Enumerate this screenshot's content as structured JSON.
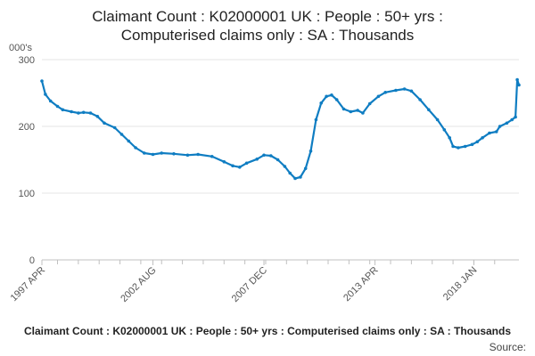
{
  "chart_data": {
    "type": "line",
    "title_lines": [
      "Claimant Count : K02000001 UK : People : 50+ yrs :",
      "Computerised claims only : SA : Thousands"
    ],
    "ylabel": "000's",
    "ylim": [
      0,
      300
    ],
    "yticks": [
      0,
      100,
      200,
      300
    ],
    "xtick_labels": [
      "1997 APR",
      "2002 AUG",
      "2007 DEC",
      "2013 APR",
      "2018 JAN"
    ],
    "grid": true,
    "color": "#0f7dc2",
    "legend": "Claimant Count : K02000001 UK : People : 50+ yrs : Computerised claims only : SA : Thousands",
    "source": "Source: ",
    "series": [
      {
        "values": [
          [
            "1997-04",
            268
          ],
          [
            "1997-06",
            248
          ],
          [
            "1997-09",
            238
          ],
          [
            "1998-01",
            230
          ],
          [
            "1998-04",
            225
          ],
          [
            "1998-09",
            222
          ],
          [
            "1999-01",
            220
          ],
          [
            "1999-04",
            221
          ],
          [
            "1999-08",
            220
          ],
          [
            "1999-12",
            215
          ],
          [
            "2000-04",
            205
          ],
          [
            "2000-10",
            198
          ],
          [
            "2001-02",
            188
          ],
          [
            "2001-06",
            178
          ],
          [
            "2001-10",
            168
          ],
          [
            "2002-03",
            160
          ],
          [
            "2002-08",
            158
          ],
          [
            "2003-01",
            160
          ],
          [
            "2003-08",
            159
          ],
          [
            "2004-04",
            157
          ],
          [
            "2004-10",
            158
          ],
          [
            "2005-06",
            155
          ],
          [
            "2006-01",
            147
          ],
          [
            "2006-06",
            141
          ],
          [
            "2006-10",
            139
          ],
          [
            "2007-02",
            145
          ],
          [
            "2007-08",
            151
          ],
          [
            "2007-12",
            157
          ],
          [
            "2008-04",
            156
          ],
          [
            "2008-08",
            150
          ],
          [
            "2008-12",
            140
          ],
          [
            "2009-03",
            130
          ],
          [
            "2009-06",
            122
          ],
          [
            "2009-09",
            124
          ],
          [
            "2009-12",
            137
          ],
          [
            "2010-03",
            163
          ],
          [
            "2010-06",
            210
          ],
          [
            "2010-09",
            235
          ],
          [
            "2010-12",
            245
          ],
          [
            "2011-03",
            247
          ],
          [
            "2011-06",
            240
          ],
          [
            "2011-10",
            226
          ],
          [
            "2012-02",
            222
          ],
          [
            "2012-06",
            224
          ],
          [
            "2012-09",
            220
          ],
          [
            "2013-01",
            234
          ],
          [
            "2013-06",
            245
          ],
          [
            "2013-10",
            251
          ],
          [
            "2014-04",
            254
          ],
          [
            "2014-09",
            256
          ],
          [
            "2015-01",
            253
          ],
          [
            "2015-06",
            240
          ],
          [
            "2015-11",
            225
          ],
          [
            "2016-04",
            210
          ],
          [
            "2016-08",
            195
          ],
          [
            "2016-11",
            183
          ],
          [
            "2017-01",
            170
          ],
          [
            "2017-04",
            168
          ],
          [
            "2017-08",
            170
          ],
          [
            "2017-12",
            173
          ],
          [
            "2018-03",
            177
          ],
          [
            "2018-06",
            183
          ],
          [
            "2018-10",
            190
          ],
          [
            "2019-02",
            192
          ],
          [
            "2019-04",
            200
          ],
          [
            "2019-08",
            205
          ],
          [
            "2019-11",
            210
          ],
          [
            "2020-01",
            214
          ],
          [
            "2020-02",
            270
          ],
          [
            "2020-03",
            262
          ]
        ]
      }
    ]
  }
}
